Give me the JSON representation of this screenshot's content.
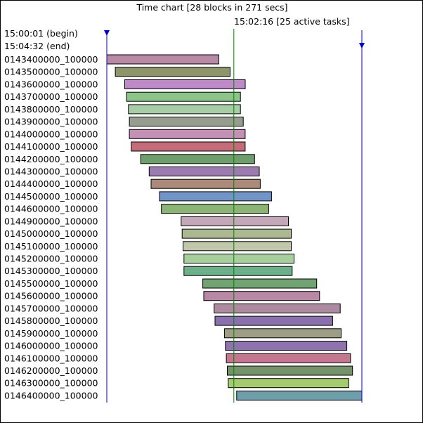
{
  "chart_data": {
    "type": "gantt",
    "title": "Time chart [28 blocks in 271 secs]",
    "cursor": {
      "time": "15:02:16",
      "label": "15:02:16 [25 active tasks]",
      "offset_secs": 135
    },
    "range": {
      "begin_label": "15:00:01 (begin)",
      "end_label": "15:04:32 (end)",
      "begin": "15:00:01",
      "end": "15:04:32",
      "duration_secs": 271
    },
    "tasks": [
      {
        "name": "0143400000_100000",
        "start": "15:00:01",
        "end": "15:02:00",
        "color": "#b88aa5"
      },
      {
        "name": "0143500000_100000",
        "start": "15:00:10",
        "end": "15:02:12",
        "color": "#8f956a"
      },
      {
        "name": "0143600000_100000",
        "start": "15:00:20",
        "end": "15:02:28",
        "color": "#bf8ac8"
      },
      {
        "name": "0143700000_100000",
        "start": "15:00:22",
        "end": "15:02:23",
        "color": "#8cc48a"
      },
      {
        "name": "0143800000_100000",
        "start": "15:00:24",
        "end": "15:02:23",
        "color": "#a8cca5"
      },
      {
        "name": "0143900000_100000",
        "start": "15:00:25",
        "end": "15:02:26",
        "color": "#979d8e"
      },
      {
        "name": "0144000000_100000",
        "start": "15:00:25",
        "end": "15:02:28",
        "color": "#c590b5"
      },
      {
        "name": "0144100000_100000",
        "start": "15:00:27",
        "end": "15:02:28",
        "color": "#c56c7a"
      },
      {
        "name": "0144200000_100000",
        "start": "15:00:37",
        "end": "15:02:38",
        "color": "#6e9e6c"
      },
      {
        "name": "0144300000_100000",
        "start": "15:00:46",
        "end": "15:02:43",
        "color": "#9c7bb0"
      },
      {
        "name": "0144400000_100000",
        "start": "15:00:48",
        "end": "15:02:44",
        "color": "#ab8a7c"
      },
      {
        "name": "0144500000_100000",
        "start": "15:00:57",
        "end": "15:02:56",
        "color": "#7394c7"
      },
      {
        "name": "0144600000_100000",
        "start": "15:00:59",
        "end": "15:02:53",
        "color": "#8cb575"
      },
      {
        "name": "0144900000_100000",
        "start": "15:01:20",
        "end": "15:03:14",
        "color": "#c4a7b8"
      },
      {
        "name": "0145000000_100000",
        "start": "15:01:21",
        "end": "15:03:17",
        "color": "#abb891"
      },
      {
        "name": "0145100000_100000",
        "start": "15:01:22",
        "end": "15:03:17",
        "color": "#c1c7aa"
      },
      {
        "name": "0145200000_100000",
        "start": "15:01:23",
        "end": "15:03:20",
        "color": "#a7cf9e"
      },
      {
        "name": "0145300000_100000",
        "start": "15:01:23",
        "end": "15:03:18",
        "color": "#6cb08a"
      },
      {
        "name": "0145500000_100000",
        "start": "15:01:43",
        "end": "15:03:44",
        "color": "#71a373"
      },
      {
        "name": "0145600000_100000",
        "start": "15:01:44",
        "end": "15:03:47",
        "color": "#b988a5"
      },
      {
        "name": "0145700000_100000",
        "start": "15:01:55",
        "end": "15:04:09",
        "color": "#ad8a9f"
      },
      {
        "name": "0145800000_100000",
        "start": "15:01:56",
        "end": "15:04:01",
        "color": "#8a71ad"
      },
      {
        "name": "0145900000_100000",
        "start": "15:02:06",
        "end": "15:04:10",
        "color": "#9e9e86"
      },
      {
        "name": "0146000000_100000",
        "start": "15:02:07",
        "end": "15:04:16",
        "color": "#8f73ae"
      },
      {
        "name": "0146100000_100000",
        "start": "15:02:08",
        "end": "15:04:20",
        "color": "#c4788f"
      },
      {
        "name": "0146200000_100000",
        "start": "15:02:09",
        "end": "15:04:22",
        "color": "#74936a"
      },
      {
        "name": "0146300000_100000",
        "start": "15:02:10",
        "end": "15:04:18",
        "color": "#a5cb6f"
      },
      {
        "name": "0146400000_100000",
        "start": "15:02:19",
        "end": "15:04:32",
        "color": "#6f9daa"
      }
    ],
    "colors": {
      "range_marker": "#0000cc",
      "cursor_line": "#008000"
    }
  }
}
